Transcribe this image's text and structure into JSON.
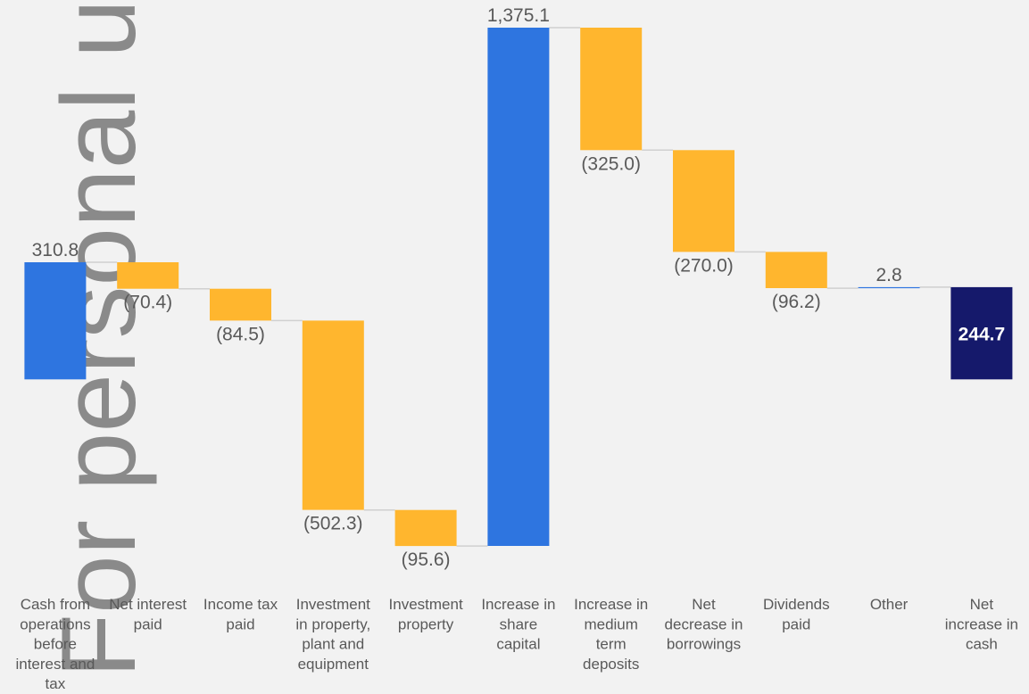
{
  "watermark": "For personal use only",
  "chart_data": {
    "type": "waterfall",
    "categories": [
      "Cash from operations before interest and tax",
      "Net interest paid",
      "Income tax paid",
      "Investment in property, plant and equipment",
      "Investment property",
      "Increase in share capital",
      "Increase in medium term deposits",
      "Net decrease in borrowings",
      "Dividends paid",
      "Other",
      "Net increase in cash"
    ],
    "category_lines": [
      [
        "Cash from",
        "operations",
        "before",
        "interest and",
        "tax"
      ],
      [
        "Net interest",
        "paid"
      ],
      [
        "Income tax",
        "paid"
      ],
      [
        "Investment",
        "in property,",
        "plant and",
        "equipment"
      ],
      [
        "Investment",
        "property"
      ],
      [
        "Increase in",
        "share",
        "capital"
      ],
      [
        "Increase in",
        "medium",
        "term",
        "deposits"
      ],
      [
        "Net",
        "decrease in",
        "borrowings"
      ],
      [
        "Dividends",
        "paid"
      ],
      [
        "Other"
      ],
      [
        "Net",
        "increase in",
        "cash"
      ]
    ],
    "values": [
      310.8,
      -70.4,
      -84.5,
      -502.3,
      -95.6,
      1375.1,
      -325.0,
      -270.0,
      -96.2,
      2.8,
      244.7
    ],
    "labels": [
      "310.8",
      "(70.4)",
      "(84.5)",
      "(502.3)",
      "(95.6)",
      "1,375.1",
      "(325.0)",
      "(270.0)",
      "(96.2)",
      "2.8",
      "244.7"
    ],
    "kinds": [
      "increase",
      "decrease",
      "decrease",
      "decrease",
      "decrease",
      "increase",
      "decrease",
      "decrease",
      "decrease",
      "increase",
      "total"
    ],
    "colors": {
      "increase": "#2e75e0",
      "decrease": "#ffb62e",
      "total": "#15196b",
      "connector": "#d0d0d0",
      "label": "#595959",
      "total_label": "#ffffff"
    }
  }
}
